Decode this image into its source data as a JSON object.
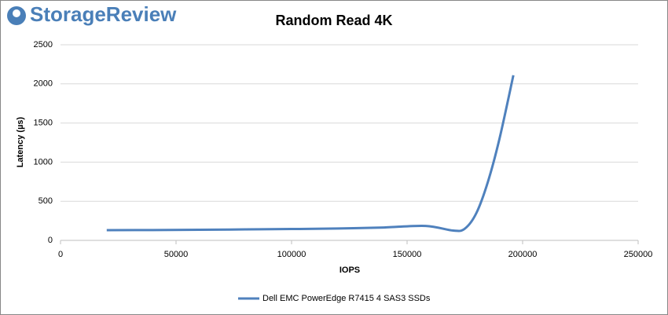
{
  "brand": "StorageReview",
  "chart_data": {
    "type": "line",
    "title": "Random Read 4K",
    "x_label": "IOPS",
    "y_label": "Latency (µs)",
    "x": [
      20000,
      40000,
      60000,
      80000,
      100000,
      120000,
      140000,
      158000,
      170000,
      175000,
      180000,
      185000,
      190000,
      196000
    ],
    "series": [
      {
        "name": "Dell EMC PowerEdge R7415 4 SAS3 SSDs",
        "color": "#4f81bd",
        "values": [
          130,
          132,
          135,
          140,
          145,
          152,
          165,
          185,
          125,
          150,
          350,
          750,
          1300,
          2110
        ]
      }
    ],
    "xlim": [
      0,
      250000
    ],
    "xticks": [
      0,
      50000,
      100000,
      150000,
      200000,
      250000
    ],
    "ylim": [
      0,
      2500
    ],
    "yticks": [
      0,
      500,
      1000,
      1500,
      2000,
      2500
    ],
    "grid": true,
    "legend": "bottom"
  }
}
